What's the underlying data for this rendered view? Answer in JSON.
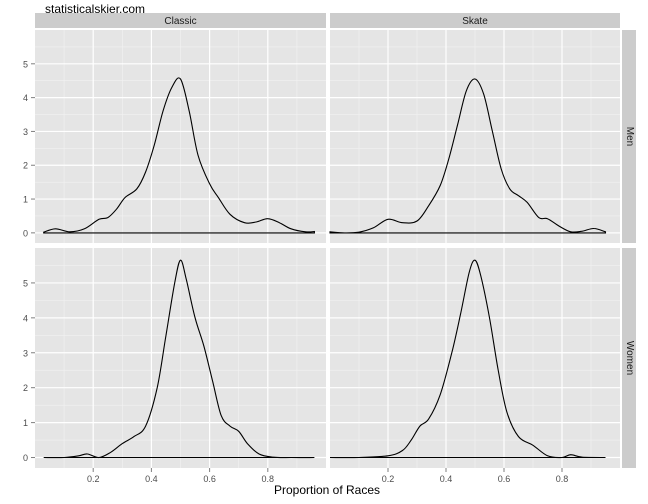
{
  "watermark": "statisticalskier.com",
  "chart_data": {
    "type": "line",
    "chart_kind": "faceted density plot",
    "xlabel": "Proportion of Races",
    "ylabel": "",
    "xlim": [
      0.0,
      1.0
    ],
    "ylim": [
      -0.3,
      6.0
    ],
    "x_ticks": [
      0.2,
      0.4,
      0.6,
      0.8
    ],
    "x_tick_labels": [
      "0.2",
      "0.4",
      "0.6",
      "0.8"
    ],
    "y_ticks_top": [
      0,
      1,
      2,
      3,
      4,
      5
    ],
    "y_ticks_bottom": [
      0,
      1,
      2,
      3,
      4,
      5
    ],
    "grid": true,
    "facet_columns": [
      "Classic",
      "Skate"
    ],
    "facet_rows": [
      "Men",
      "Women"
    ],
    "panels": [
      {
        "column": "Classic",
        "row": "Men",
        "x": [
          0.03,
          0.07,
          0.12,
          0.17,
          0.22,
          0.25,
          0.28,
          0.31,
          0.35,
          0.38,
          0.41,
          0.44,
          0.47,
          0.5,
          0.53,
          0.56,
          0.6,
          0.63,
          0.67,
          0.72,
          0.76,
          0.8,
          0.84,
          0.88,
          0.93,
          0.96
        ],
        "y": [
          0.02,
          0.12,
          0.03,
          0.12,
          0.4,
          0.45,
          0.7,
          1.05,
          1.3,
          1.8,
          2.6,
          3.6,
          4.3,
          4.55,
          3.6,
          2.3,
          1.45,
          1.05,
          0.55,
          0.3,
          0.32,
          0.42,
          0.3,
          0.12,
          0.03,
          0.04
        ]
      },
      {
        "column": "Skate",
        "row": "Men",
        "x": [
          0.0,
          0.05,
          0.1,
          0.15,
          0.2,
          0.25,
          0.3,
          0.34,
          0.38,
          0.41,
          0.44,
          0.47,
          0.5,
          0.53,
          0.56,
          0.59,
          0.62,
          0.65,
          0.68,
          0.72,
          0.75,
          0.79,
          0.83,
          0.87,
          0.91,
          0.95
        ],
        "y": [
          0.03,
          0.0,
          0.02,
          0.15,
          0.4,
          0.3,
          0.35,
          0.8,
          1.4,
          2.2,
          3.2,
          4.2,
          4.55,
          4.1,
          3.0,
          1.9,
          1.3,
          1.1,
          0.9,
          0.45,
          0.42,
          0.2,
          0.03,
          0.05,
          0.13,
          0.03
        ]
      },
      {
        "column": "Classic",
        "row": "Women",
        "x": [
          0.03,
          0.1,
          0.15,
          0.18,
          0.22,
          0.26,
          0.3,
          0.34,
          0.38,
          0.42,
          0.45,
          0.48,
          0.5,
          0.52,
          0.55,
          0.58,
          0.61,
          0.64,
          0.67,
          0.7,
          0.73,
          0.77,
          0.82,
          0.88,
          0.96
        ],
        "y": [
          0.0,
          0.0,
          0.05,
          0.1,
          0.0,
          0.15,
          0.4,
          0.6,
          0.9,
          2.0,
          3.5,
          5.0,
          5.65,
          5.1,
          4.0,
          3.2,
          2.2,
          1.2,
          0.9,
          0.75,
          0.4,
          0.1,
          0.01,
          0.0,
          0.0
        ]
      },
      {
        "column": "Skate",
        "row": "Women",
        "x": [
          0.0,
          0.1,
          0.2,
          0.25,
          0.28,
          0.31,
          0.34,
          0.38,
          0.42,
          0.45,
          0.48,
          0.5,
          0.52,
          0.55,
          0.58,
          0.61,
          0.65,
          0.7,
          0.75,
          0.8,
          0.83,
          0.87,
          0.95
        ],
        "y": [
          0.0,
          0.0,
          0.05,
          0.2,
          0.5,
          0.9,
          1.1,
          1.8,
          3.0,
          4.1,
          5.3,
          5.65,
          5.2,
          4.0,
          2.5,
          1.3,
          0.6,
          0.35,
          0.05,
          0.0,
          0.08,
          0.01,
          0.0
        ]
      }
    ]
  }
}
